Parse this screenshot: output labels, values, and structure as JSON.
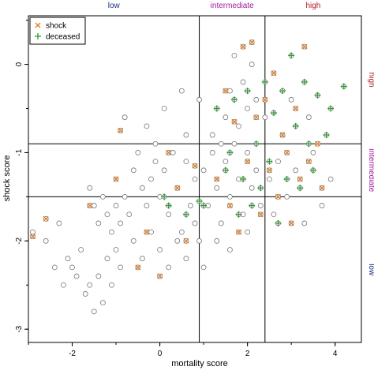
{
  "chart_data": {
    "type": "scatter",
    "xlabel": "mortality score",
    "ylabel": "shock score",
    "xlim": [
      -3.0,
      4.6
    ],
    "ylim": [
      -3.15,
      0.55
    ],
    "xticks": [
      "-2",
      "0",
      "2",
      "4"
    ],
    "yticks": [
      "0",
      "-1",
      "-2",
      "-3"
    ],
    "x_thresholds": [
      0.9,
      2.4
    ],
    "y_thresholds": [
      -0.9,
      -1.5
    ],
    "x_categories": [
      {
        "label": "low",
        "color": "#1a2f8a"
      },
      {
        "label": "intermediate",
        "color": "#a020a0"
      },
      {
        "label": "high",
        "color": "#b01c2e"
      }
    ],
    "y_categories": [
      {
        "label": "high",
        "color": "#b01c2e"
      },
      {
        "label": "intermediate",
        "color": "#a020a0"
      },
      {
        "label": "low",
        "color": "#1a2f8a"
      }
    ],
    "legend": {
      "position": "top-left",
      "items": [
        {
          "label": "shock",
          "marker": "x",
          "color": "#e07b20"
        },
        {
          "label": "deceased",
          "marker": "+",
          "color": "#2e9a2e"
        }
      ]
    },
    "series": [
      {
        "name": "",
        "marker": "open-circle",
        "color": "#777777",
        "points": [
          [
            -2.4,
            -2.3
          ],
          [
            -2.2,
            -2.5
          ],
          [
            -2.1,
            -2.2
          ],
          [
            -2.0,
            -2.3
          ],
          [
            -1.9,
            -2.4
          ],
          [
            -1.8,
            -2.1
          ],
          [
            -1.7,
            -2.6
          ],
          [
            -1.6,
            -2.5
          ],
          [
            -1.5,
            -2.8
          ],
          [
            -1.4,
            -2.4
          ],
          [
            -1.3,
            -2.7
          ],
          [
            -1.2,
            -2.2
          ],
          [
            -1.1,
            -2.5
          ],
          [
            -1.0,
            -2.1
          ],
          [
            -0.9,
            -2.3
          ],
          [
            -1.6,
            -1.4
          ],
          [
            -1.5,
            -1.6
          ],
          [
            -1.4,
            -1.8
          ],
          [
            -1.3,
            -1.5
          ],
          [
            -1.2,
            -1.7
          ],
          [
            -1.1,
            -1.9
          ],
          [
            -1.0,
            -1.6
          ],
          [
            -0.9,
            -1.8
          ],
          [
            -0.8,
            -1.5
          ],
          [
            -0.7,
            -1.7
          ],
          [
            -0.6,
            -1.2
          ],
          [
            -0.5,
            -1.0
          ],
          [
            -0.4,
            -1.4
          ],
          [
            -0.3,
            -1.6
          ],
          [
            -0.2,
            -1.3
          ],
          [
            -0.1,
            -1.1
          ],
          [
            0.0,
            -1.5
          ],
          [
            0.1,
            -1.2
          ],
          [
            0.2,
            -1.7
          ],
          [
            0.3,
            -1.0
          ],
          [
            0.4,
            -1.4
          ],
          [
            0.5,
            -1.9
          ],
          [
            0.6,
            -1.1
          ],
          [
            0.7,
            -1.6
          ],
          [
            0.8,
            -1.3
          ],
          [
            -0.6,
            -2.0
          ],
          [
            -0.4,
            -2.2
          ],
          [
            -0.2,
            -1.9
          ],
          [
            0.0,
            -2.1
          ],
          [
            0.2,
            -2.3
          ],
          [
            0.4,
            -2.0
          ],
          [
            0.6,
            -2.2
          ],
          [
            0.8,
            -1.8
          ],
          [
            1.0,
            -1.2
          ],
          [
            1.1,
            -1.6
          ],
          [
            1.2,
            -1.0
          ],
          [
            1.3,
            -1.4
          ],
          [
            1.4,
            -1.8
          ],
          [
            1.5,
            -1.1
          ],
          [
            1.6,
            -1.5
          ],
          [
            1.7,
            -0.9
          ],
          [
            1.8,
            -1.3
          ],
          [
            1.9,
            -1.7
          ],
          [
            2.0,
            -1.0
          ],
          [
            2.1,
            -1.4
          ],
          [
            2.2,
            -1.2
          ],
          [
            2.3,
            -1.6
          ],
          [
            1.2,
            -0.8
          ],
          [
            1.5,
            -0.6
          ],
          [
            1.8,
            -0.7
          ],
          [
            2.0,
            -0.5
          ],
          [
            1.6,
            -0.3
          ],
          [
            1.9,
            -0.2
          ],
          [
            2.1,
            0.0
          ],
          [
            1.7,
            0.1
          ],
          [
            2.2,
            -0.4
          ],
          [
            2.5,
            -1.3
          ],
          [
            2.6,
            -1.7
          ],
          [
            2.7,
            -1.1
          ],
          [
            2.9,
            -1.5
          ],
          [
            3.1,
            -1.2
          ],
          [
            3.3,
            -1.8
          ],
          [
            3.5,
            -1.0
          ],
          [
            3.7,
            -1.6
          ],
          [
            3.9,
            -1.3
          ],
          [
            0.9,
            -2.0
          ],
          [
            1.0,
            -2.3
          ],
          [
            1.3,
            -2.0
          ],
          [
            1.6,
            -2.1
          ],
          [
            2.0,
            -1.9
          ],
          [
            -2.9,
            -1.9
          ],
          [
            -2.6,
            -2.0
          ],
          [
            -2.3,
            -1.8
          ],
          [
            -0.8,
            -0.6
          ],
          [
            -0.3,
            -0.7
          ],
          [
            0.1,
            -0.5
          ],
          [
            0.5,
            -0.3
          ],
          [
            -0.1,
            -0.9
          ],
          [
            0.6,
            -0.8
          ],
          [
            0.9,
            -0.4
          ],
          [
            1.4,
            -0.9
          ],
          [
            2.4,
            -0.6
          ],
          [
            2.8,
            -0.8
          ],
          [
            3.0,
            -0.4
          ],
          [
            3.4,
            -0.6
          ]
        ]
      },
      {
        "name": "shock",
        "marker": "x",
        "color": "#e07b20",
        "points": [
          [
            -2.9,
            -1.95
          ],
          [
            -2.6,
            -1.75
          ],
          [
            -1.6,
            -1.6
          ],
          [
            -1.0,
            -1.3
          ],
          [
            -0.9,
            -0.75
          ],
          [
            -0.5,
            -2.3
          ],
          [
            -0.3,
            -1.9
          ],
          [
            0.0,
            -2.4
          ],
          [
            0.2,
            -1.0
          ],
          [
            0.4,
            -1.4
          ],
          [
            0.6,
            -2.0
          ],
          [
            0.8,
            -1.15
          ],
          [
            1.3,
            -1.3
          ],
          [
            1.5,
            -0.3
          ],
          [
            1.6,
            -1.6
          ],
          [
            1.7,
            -0.65
          ],
          [
            1.8,
            -1.9
          ],
          [
            1.9,
            0.2
          ],
          [
            2.0,
            -1.1
          ],
          [
            2.1,
            0.25
          ],
          [
            2.2,
            -0.6
          ],
          [
            2.3,
            -1.7
          ],
          [
            2.4,
            -0.4
          ],
          [
            2.5,
            -1.2
          ],
          [
            2.6,
            -0.1
          ],
          [
            2.7,
            -1.5
          ],
          [
            2.8,
            -0.8
          ],
          [
            2.9,
            -1.0
          ],
          [
            3.0,
            -1.8
          ],
          [
            3.1,
            -0.5
          ],
          [
            3.2,
            -1.3
          ],
          [
            3.3,
            0.2
          ],
          [
            3.4,
            -1.1
          ],
          [
            3.6,
            -0.9
          ],
          [
            3.7,
            -1.4
          ]
        ]
      },
      {
        "name": "deceased",
        "marker": "+",
        "color": "#2e9a2e",
        "points": [
          [
            0.1,
            -1.5
          ],
          [
            0.2,
            -1.6
          ],
          [
            0.6,
            -1.7
          ],
          [
            0.9,
            -1.55
          ],
          [
            1.0,
            -1.6
          ],
          [
            1.3,
            -0.5
          ],
          [
            1.5,
            -1.2
          ],
          [
            1.6,
            -1.0
          ],
          [
            1.7,
            -0.4
          ],
          [
            1.8,
            -1.7
          ],
          [
            1.9,
            -1.3
          ],
          [
            2.0,
            -0.3
          ],
          [
            2.1,
            -1.6
          ],
          [
            2.2,
            -0.9
          ],
          [
            2.3,
            -1.4
          ],
          [
            2.4,
            -0.2
          ],
          [
            2.5,
            -1.1
          ],
          [
            2.6,
            -0.55
          ],
          [
            2.7,
            -1.8
          ],
          [
            2.8,
            -0.3
          ],
          [
            2.9,
            -1.3
          ],
          [
            3.0,
            0.1
          ],
          [
            3.1,
            -0.7
          ],
          [
            3.2,
            -1.4
          ],
          [
            3.3,
            -0.2
          ],
          [
            3.4,
            -0.9
          ],
          [
            3.5,
            -1.2
          ],
          [
            3.6,
            -0.35
          ],
          [
            3.8,
            -0.8
          ],
          [
            3.9,
            -0.5
          ],
          [
            4.2,
            -0.25
          ]
        ]
      }
    ]
  }
}
